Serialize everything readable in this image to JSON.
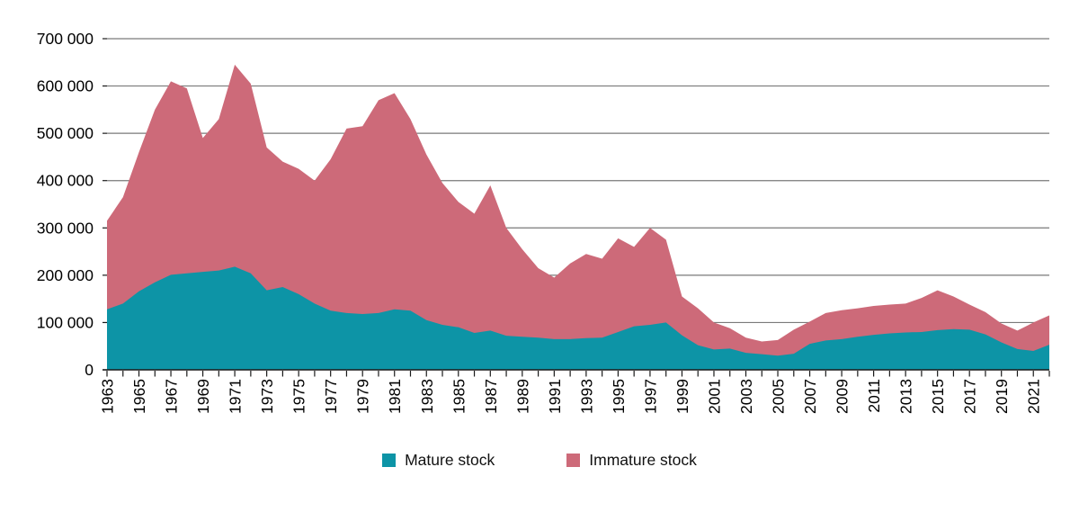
{
  "chart_data": {
    "type": "area",
    "stacked": true,
    "grid": true,
    "legend_position": "bottom-center",
    "ylim": [
      0,
      700000
    ],
    "x": [
      1963,
      1964,
      1965,
      1966,
      1967,
      1968,
      1969,
      1970,
      1971,
      1972,
      1973,
      1974,
      1975,
      1976,
      1977,
      1978,
      1979,
      1980,
      1981,
      1982,
      1983,
      1984,
      1985,
      1986,
      1987,
      1988,
      1989,
      1990,
      1991,
      1992,
      1993,
      1994,
      1995,
      1996,
      1997,
      1998,
      1999,
      2000,
      2001,
      2002,
      2003,
      2004,
      2005,
      2006,
      2007,
      2008,
      2009,
      2010,
      2011,
      2012,
      2013,
      2014,
      2015,
      2016,
      2017,
      2018,
      2019,
      2020,
      2021,
      2022
    ],
    "series": [
      {
        "name": "Mature stock",
        "color": "#0d94a6",
        "values": [
          128000,
          140000,
          166000,
          185000,
          201000,
          204000,
          207000,
          210000,
          218000,
          204000,
          168000,
          175000,
          160000,
          140000,
          125000,
          120000,
          118000,
          120000,
          128000,
          125000,
          105000,
          95000,
          90000,
          78000,
          83000,
          72000,
          70000,
          68000,
          65000,
          65000,
          67000,
          68000,
          80000,
          92000,
          95000,
          100000,
          73000,
          52000,
          43000,
          45000,
          36000,
          33000,
          30000,
          34000,
          55000,
          62000,
          65000,
          70000,
          74000,
          77000,
          79000,
          80000,
          84000,
          86000,
          85000,
          75000,
          58000,
          44000,
          40000,
          53000
        ]
      },
      {
        "name": "Immature stock",
        "color": "#cd6a79",
        "values": [
          187000,
          225000,
          294000,
          365000,
          409000,
          391000,
          283000,
          320000,
          427000,
          401000,
          302000,
          265000,
          265000,
          260000,
          320000,
          390000,
          397000,
          450000,
          457000,
          405000,
          350000,
          300000,
          265000,
          252000,
          307000,
          228000,
          185000,
          147000,
          130000,
          160000,
          178000,
          167000,
          198000,
          168000,
          205000,
          175000,
          82000,
          78000,
          57000,
          43000,
          32000,
          27000,
          33000,
          51000,
          47000,
          58000,
          61000,
          60000,
          61000,
          61000,
          61000,
          72000,
          84000,
          69000,
          53000,
          47000,
          40000,
          39000,
          60000,
          62000
        ]
      }
    ],
    "y_ticks": [
      {
        "value": 0,
        "label": "0"
      },
      {
        "value": 100000,
        "label": "100 000"
      },
      {
        "value": 200000,
        "label": "200 000"
      },
      {
        "value": 300000,
        "label": "300 000"
      },
      {
        "value": 400000,
        "label": "400 000"
      },
      {
        "value": 500000,
        "label": "500 000"
      },
      {
        "value": 600000,
        "label": "600 000"
      },
      {
        "value": 700000,
        "label": "700 000"
      }
    ],
    "x_tick_labels": [
      "1963",
      "1965",
      "1967",
      "1969",
      "1971",
      "1973",
      "1975",
      "1977",
      "1979",
      "1981",
      "1983",
      "1985",
      "1987",
      "1989",
      "1991",
      "1993",
      "1995",
      "1997",
      "1999",
      "2001",
      "2003",
      "2005",
      "2007",
      "2009",
      "2011",
      "2013",
      "2015",
      "2017",
      "2019",
      "2021"
    ]
  },
  "style": {
    "gridline_color": "#7a7a7a",
    "axis_color": "#1a1a1a",
    "text_color": "#000000"
  }
}
